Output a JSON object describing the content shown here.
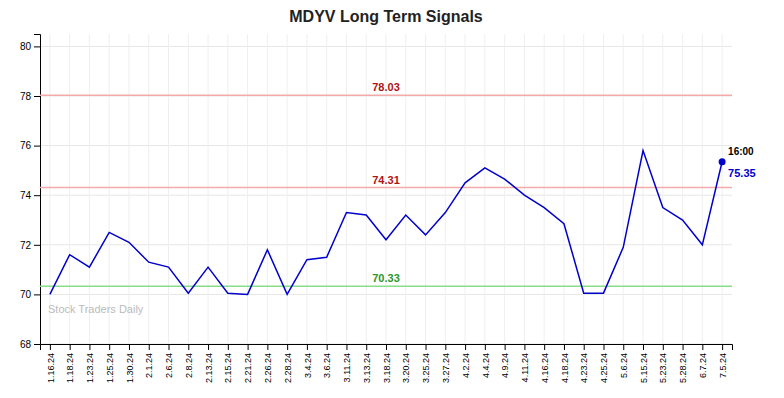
{
  "chart_data": {
    "type": "line",
    "title": "MDYV Long Term Signals",
    "categories": [
      "1.16.24",
      "1.18.24",
      "1.23.24",
      "1.25.24",
      "1.30.24",
      "2.1.24",
      "2.6.24",
      "2.8.24",
      "2.13.24",
      "2.15.24",
      "2.21.24",
      "2.26.24",
      "2.28.24",
      "3.4.24",
      "3.6.24",
      "3.11.24",
      "3.13.24",
      "3.18.24",
      "3.20.24",
      "3.25.24",
      "3.27.24",
      "4.2.24",
      "4.4.24",
      "4.9.24",
      "4.11.24",
      "4.16.24",
      "4.18.24",
      "4.23.24",
      "4.25.24",
      "5.6.24",
      "5.15.24",
      "5.23.24",
      "5.28.24",
      "6.7.24",
      "7.5.24"
    ],
    "values": [
      70.0,
      71.6,
      71.1,
      72.5,
      72.1,
      71.3,
      71.1,
      70.05,
      71.1,
      70.05,
      70.0,
      71.8,
      70.0,
      71.4,
      71.5,
      73.3,
      73.2,
      72.2,
      73.2,
      72.4,
      73.3,
      74.5,
      75.1,
      74.65,
      74.0,
      73.5,
      72.85,
      70.05,
      70.05,
      71.9,
      75.8,
      73.5,
      73.0,
      72.0,
      75.35
    ],
    "color": "#0000cc",
    "hlines": [
      {
        "value": 78.03,
        "color": "#f5aaaa"
      },
      {
        "value": 74.31,
        "color": "#f5aaaa"
      },
      {
        "value": 70.33,
        "color": "#88dd88"
      }
    ],
    "annotations": [
      {
        "text": "16:00"
      },
      {
        "text": "Stock Traders Daily"
      }
    ],
    "ylim": [
      68,
      80.5
    ],
    "yticks": [
      68,
      70,
      72,
      74,
      76,
      78,
      80
    ],
    "grid": true
  }
}
